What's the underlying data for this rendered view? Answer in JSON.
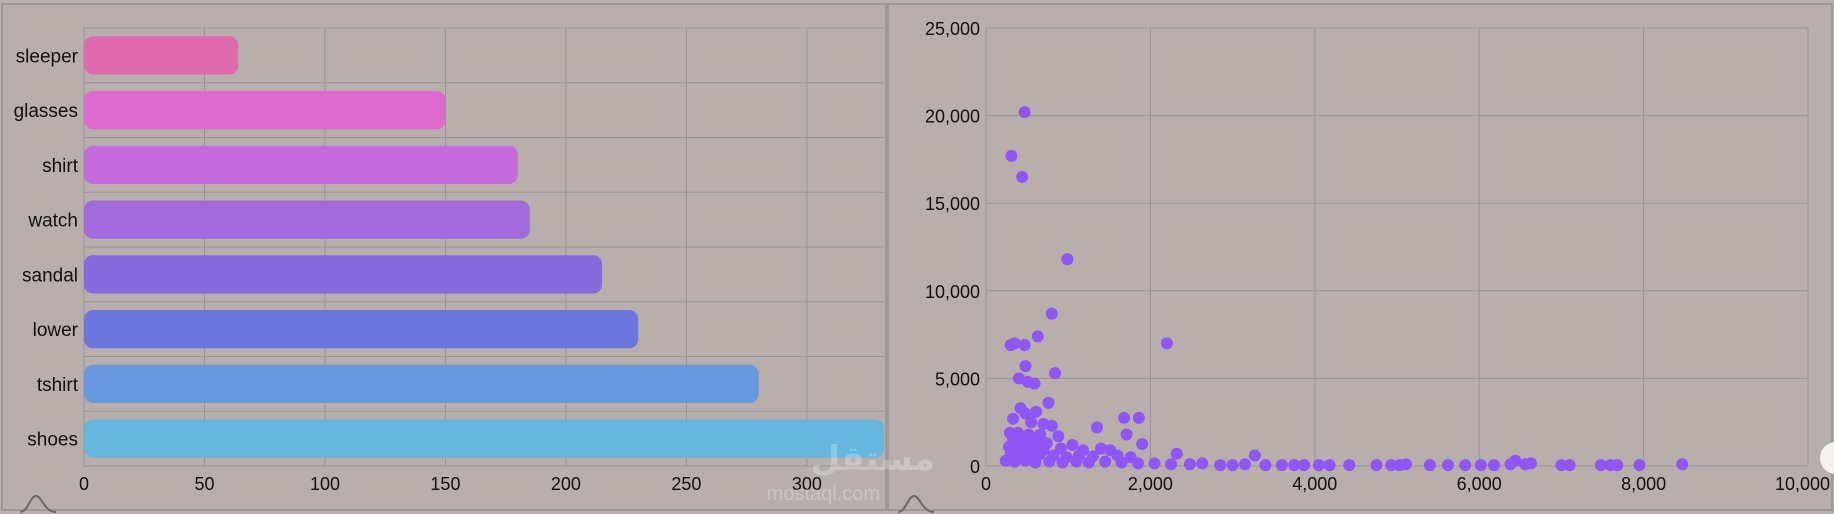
{
  "chart_data": [
    {
      "type": "bar",
      "orientation": "horizontal",
      "categories": [
        "sleeper",
        "glasses",
        "shirt",
        "watch",
        "sandal",
        "lower",
        "tshirt",
        "shoes"
      ],
      "values": [
        64,
        150,
        180,
        185,
        215,
        230,
        280,
        332
      ],
      "bar_colors": [
        "#e06aae",
        "#de6acd",
        "#c56cdc",
        "#a26ada",
        "#836ade",
        "#6b76df",
        "#6a98df",
        "#67b6dd"
      ],
      "xlim": [
        0,
        332
      ],
      "xticks": [
        "0",
        "50",
        "100",
        "150",
        "200",
        "250",
        "300"
      ],
      "title": "",
      "xlabel": "",
      "ylabel": "",
      "grid": true
    },
    {
      "type": "scatter",
      "color": "#8f55f5",
      "xlim": [
        0,
        10000
      ],
      "ylim": [
        0,
        25000
      ],
      "xticks": [
        "0",
        "2,000",
        "4,000",
        "6,000",
        "8,000",
        "10,000"
      ],
      "yticks": [
        "0",
        "5,000",
        "10,000",
        "15,000",
        "20,000",
        "25,000"
      ],
      "title": "",
      "xlabel": "",
      "ylabel": "",
      "grid": true,
      "points": [
        [
          470,
          20200
        ],
        [
          310,
          17700
        ],
        [
          440,
          16500
        ],
        [
          990,
          11800
        ],
        [
          800,
          8700
        ],
        [
          2200,
          7000
        ],
        [
          630,
          7400
        ],
        [
          300,
          6900
        ],
        [
          350,
          7000
        ],
        [
          470,
          6900
        ],
        [
          480,
          5700
        ],
        [
          840,
          5300
        ],
        [
          400,
          5000
        ],
        [
          510,
          4800
        ],
        [
          590,
          4700
        ],
        [
          760,
          3600
        ],
        [
          420,
          3300
        ],
        [
          610,
          3100
        ],
        [
          480,
          3000
        ],
        [
          330,
          2700
        ],
        [
          1680,
          2750
        ],
        [
          1860,
          2750
        ],
        [
          550,
          2500
        ],
        [
          700,
          2400
        ],
        [
          800,
          2300
        ],
        [
          1350,
          2200
        ],
        [
          290,
          1900
        ],
        [
          390,
          1900
        ],
        [
          520,
          1800
        ],
        [
          660,
          1800
        ],
        [
          880,
          1700
        ],
        [
          1710,
          1800
        ],
        [
          330,
          1500
        ],
        [
          460,
          1400
        ],
        [
          600,
          1300
        ],
        [
          740,
          1300
        ],
        [
          1050,
          1200
        ],
        [
          1900,
          1250
        ],
        [
          280,
          1100
        ],
        [
          380,
          1000
        ],
        [
          520,
          1000
        ],
        [
          700,
          900
        ],
        [
          910,
          1000
        ],
        [
          1180,
          900
        ],
        [
          1400,
          1000
        ],
        [
          1510,
          900
        ],
        [
          300,
          700
        ],
        [
          420,
          600
        ],
        [
          560,
          700
        ],
        [
          650,
          650
        ],
        [
          820,
          600
        ],
        [
          980,
          500
        ],
        [
          1130,
          600
        ],
        [
          1300,
          550
        ],
        [
          1600,
          600
        ],
        [
          1760,
          500
        ],
        [
          2320,
          700
        ],
        [
          3270,
          600
        ],
        [
          240,
          300
        ],
        [
          350,
          250
        ],
        [
          480,
          300
        ],
        [
          600,
          200
        ],
        [
          770,
          250
        ],
        [
          930,
          200
        ],
        [
          1100,
          250
        ],
        [
          1250,
          200
        ],
        [
          1450,
          250
        ],
        [
          1650,
          200
        ],
        [
          1850,
          150
        ],
        [
          2050,
          150
        ],
        [
          2250,
          100
        ],
        [
          2480,
          100
        ],
        [
          2630,
          150
        ],
        [
          2850,
          50
        ],
        [
          3000,
          50
        ],
        [
          3150,
          100
        ],
        [
          3400,
          50
        ],
        [
          3600,
          50
        ],
        [
          3750,
          50
        ],
        [
          3870,
          50
        ],
        [
          4050,
          50
        ],
        [
          4180,
          50
        ],
        [
          4420,
          50
        ],
        [
          4750,
          50
        ],
        [
          4930,
          50
        ],
        [
          5030,
          50
        ],
        [
          5110,
          100
        ],
        [
          5400,
          50
        ],
        [
          5620,
          50
        ],
        [
          5830,
          50
        ],
        [
          6020,
          50
        ],
        [
          6180,
          50
        ],
        [
          6380,
          100
        ],
        [
          6440,
          300
        ],
        [
          6560,
          100
        ],
        [
          6630,
          150
        ],
        [
          7000,
          50
        ],
        [
          7100,
          50
        ],
        [
          7480,
          50
        ],
        [
          7600,
          50
        ],
        [
          7680,
          50
        ],
        [
          7950,
          50
        ],
        [
          8470,
          100
        ]
      ]
    }
  ],
  "watermark": {
    "text": "مستقل",
    "subtext": "mostaql.com"
  }
}
